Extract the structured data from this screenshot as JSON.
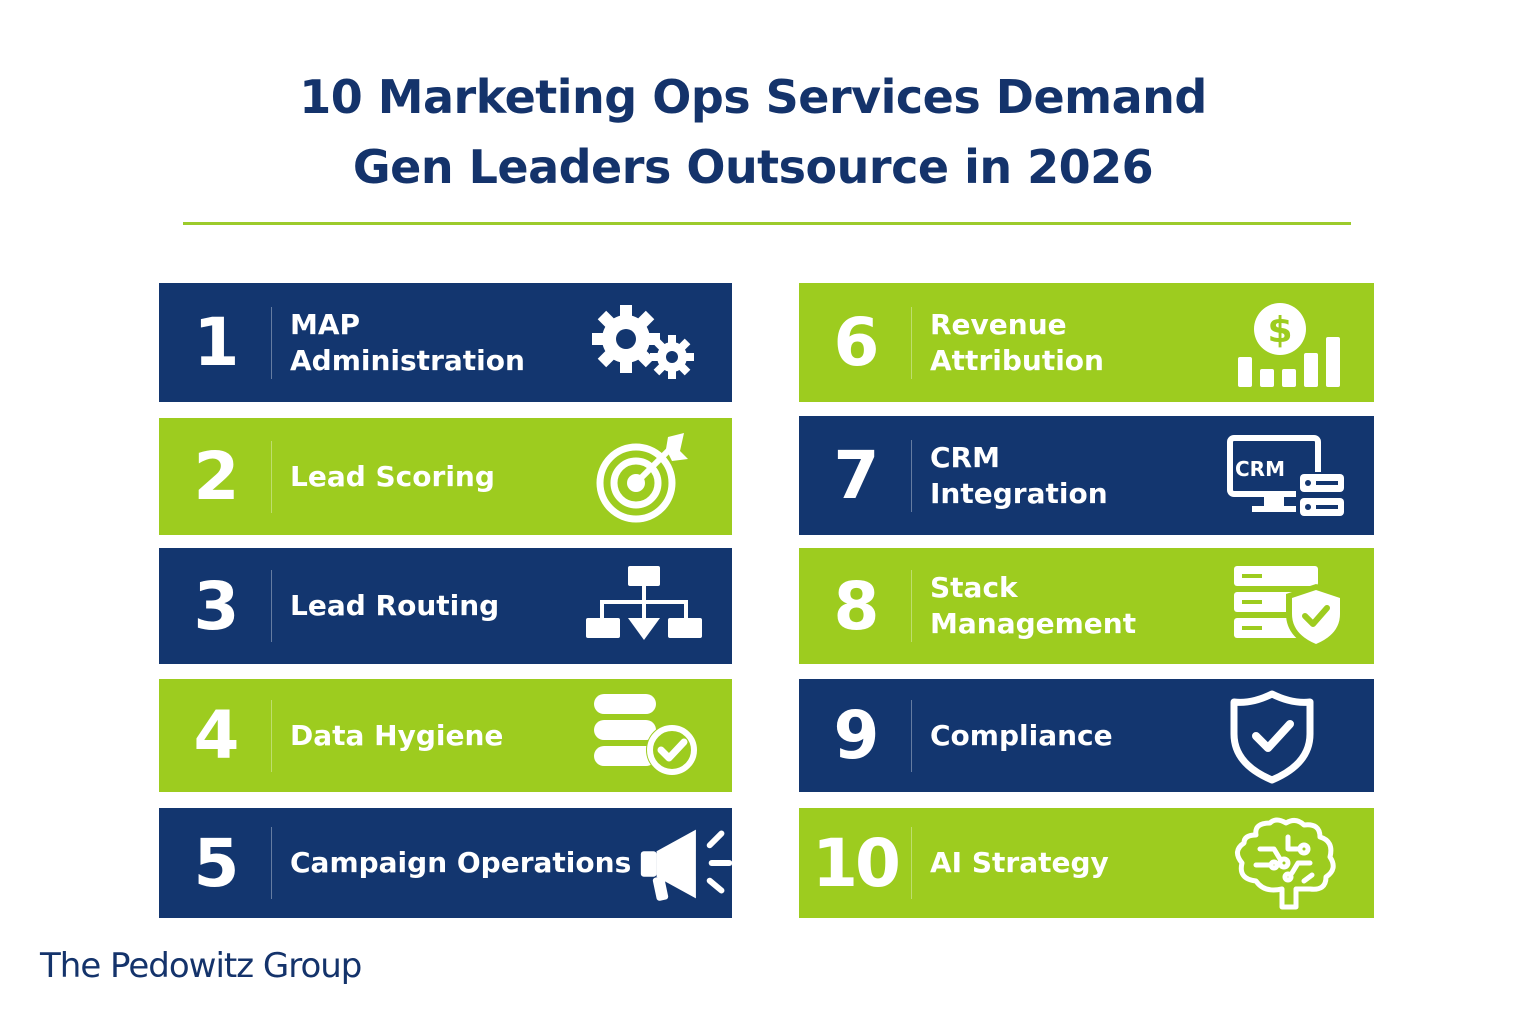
{
  "title": {
    "line1": "10 Marketing Ops Services Demand",
    "line2": "Gen Leaders Outsource in 2026"
  },
  "colors": {
    "navy": "#13366f",
    "lime": "#9dcc1f",
    "title": "#14336b"
  },
  "services": [
    {
      "number": "1",
      "label": "MAP\nAdministration",
      "icon": "gears-icon",
      "color": "navy"
    },
    {
      "number": "2",
      "label": "Lead Scoring",
      "icon": "target-icon",
      "color": "lime"
    },
    {
      "number": "3",
      "label": "Lead Routing",
      "icon": "org-chart-icon",
      "color": "navy"
    },
    {
      "number": "4",
      "label": "Data Hygiene",
      "icon": "database-check-icon",
      "color": "lime"
    },
    {
      "number": "5",
      "label": "Campaign Operations",
      "icon": "megaphone-icon",
      "color": "navy"
    },
    {
      "number": "6",
      "label": "Revenue\nAttribution",
      "icon": "dollar-chart-icon",
      "color": "lime"
    },
    {
      "number": "7",
      "label": "CRM\nIntegration",
      "icon": "crm-monitor-icon",
      "color": "navy",
      "icon_text": "CRM"
    },
    {
      "number": "8",
      "label": "Stack\nManagement",
      "icon": "server-shield-icon",
      "color": "lime"
    },
    {
      "number": "9",
      "label": "Compliance",
      "icon": "shield-check-icon",
      "color": "navy"
    },
    {
      "number": "10",
      "label": "AI Strategy",
      "icon": "brain-icon",
      "color": "lime"
    }
  ],
  "brand": "The Pedowitz Group"
}
